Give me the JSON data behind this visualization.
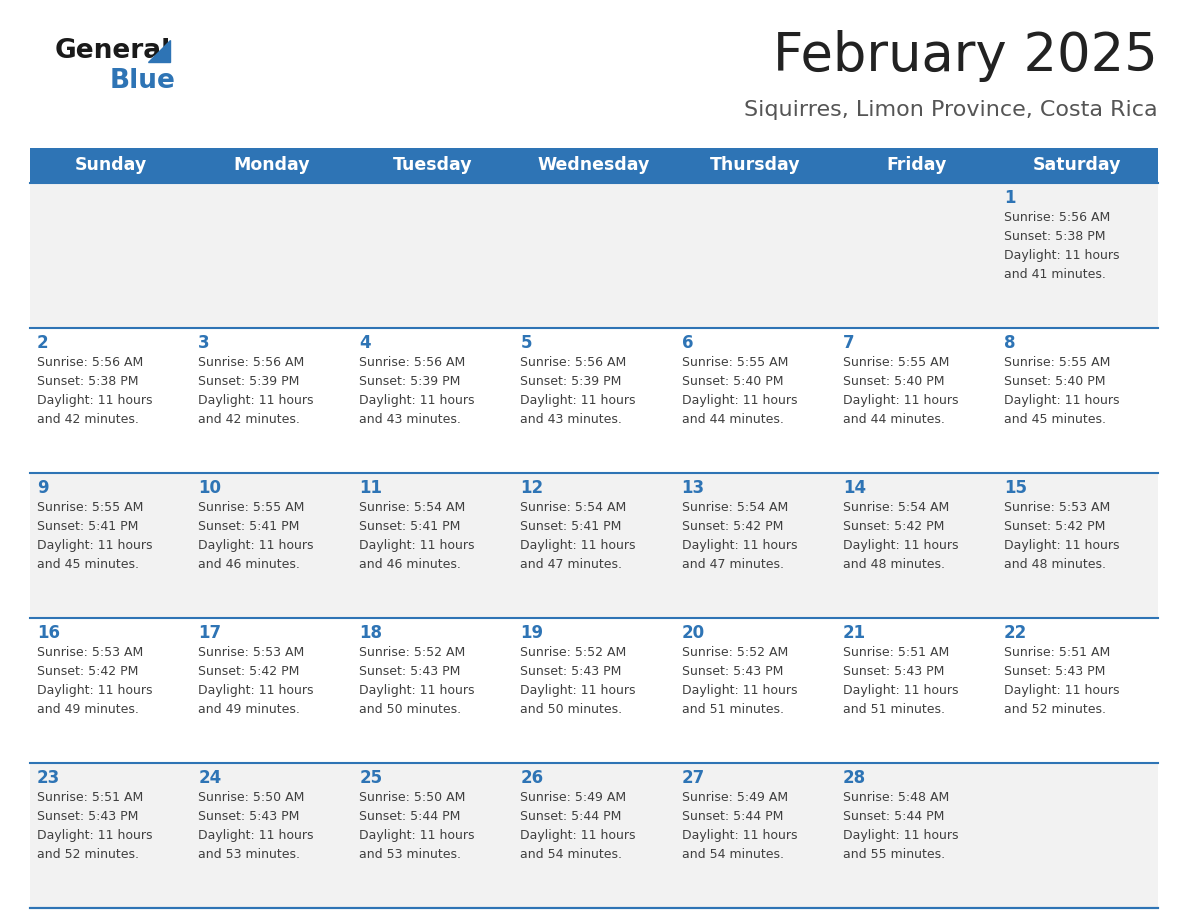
{
  "title": "February 2025",
  "subtitle": "Siquirres, Limon Province, Costa Rica",
  "header_color": "#2E74B5",
  "header_text_color": "#FFFFFF",
  "cell_bg_light": "#F2F2F2",
  "cell_bg_white": "#FFFFFF",
  "text_color": "#404040",
  "day_number_color": "#2E74B5",
  "separator_color": "#2E74B5",
  "days_of_week": [
    "Sunday",
    "Monday",
    "Tuesday",
    "Wednesday",
    "Thursday",
    "Friday",
    "Saturday"
  ],
  "weeks": [
    [
      {
        "day": null,
        "sunrise": null,
        "sunset": null,
        "daylight_h": null,
        "daylight_m": null
      },
      {
        "day": null,
        "sunrise": null,
        "sunset": null,
        "daylight_h": null,
        "daylight_m": null
      },
      {
        "day": null,
        "sunrise": null,
        "sunset": null,
        "daylight_h": null,
        "daylight_m": null
      },
      {
        "day": null,
        "sunrise": null,
        "sunset": null,
        "daylight_h": null,
        "daylight_m": null
      },
      {
        "day": null,
        "sunrise": null,
        "sunset": null,
        "daylight_h": null,
        "daylight_m": null
      },
      {
        "day": null,
        "sunrise": null,
        "sunset": null,
        "daylight_h": null,
        "daylight_m": null
      },
      {
        "day": 1,
        "sunrise": "5:56 AM",
        "sunset": "5:38 PM",
        "daylight_h": "11 hours",
        "daylight_m": "and 41 minutes."
      }
    ],
    [
      {
        "day": 2,
        "sunrise": "5:56 AM",
        "sunset": "5:38 PM",
        "daylight_h": "11 hours",
        "daylight_m": "and 42 minutes."
      },
      {
        "day": 3,
        "sunrise": "5:56 AM",
        "sunset": "5:39 PM",
        "daylight_h": "11 hours",
        "daylight_m": "and 42 minutes."
      },
      {
        "day": 4,
        "sunrise": "5:56 AM",
        "sunset": "5:39 PM",
        "daylight_h": "11 hours",
        "daylight_m": "and 43 minutes."
      },
      {
        "day": 5,
        "sunrise": "5:56 AM",
        "sunset": "5:39 PM",
        "daylight_h": "11 hours",
        "daylight_m": "and 43 minutes."
      },
      {
        "day": 6,
        "sunrise": "5:55 AM",
        "sunset": "5:40 PM",
        "daylight_h": "11 hours",
        "daylight_m": "and 44 minutes."
      },
      {
        "day": 7,
        "sunrise": "5:55 AM",
        "sunset": "5:40 PM",
        "daylight_h": "11 hours",
        "daylight_m": "and 44 minutes."
      },
      {
        "day": 8,
        "sunrise": "5:55 AM",
        "sunset": "5:40 PM",
        "daylight_h": "11 hours",
        "daylight_m": "and 45 minutes."
      }
    ],
    [
      {
        "day": 9,
        "sunrise": "5:55 AM",
        "sunset": "5:41 PM",
        "daylight_h": "11 hours",
        "daylight_m": "and 45 minutes."
      },
      {
        "day": 10,
        "sunrise": "5:55 AM",
        "sunset": "5:41 PM",
        "daylight_h": "11 hours",
        "daylight_m": "and 46 minutes."
      },
      {
        "day": 11,
        "sunrise": "5:54 AM",
        "sunset": "5:41 PM",
        "daylight_h": "11 hours",
        "daylight_m": "and 46 minutes."
      },
      {
        "day": 12,
        "sunrise": "5:54 AM",
        "sunset": "5:41 PM",
        "daylight_h": "11 hours",
        "daylight_m": "and 47 minutes."
      },
      {
        "day": 13,
        "sunrise": "5:54 AM",
        "sunset": "5:42 PM",
        "daylight_h": "11 hours",
        "daylight_m": "and 47 minutes."
      },
      {
        "day": 14,
        "sunrise": "5:54 AM",
        "sunset": "5:42 PM",
        "daylight_h": "11 hours",
        "daylight_m": "and 48 minutes."
      },
      {
        "day": 15,
        "sunrise": "5:53 AM",
        "sunset": "5:42 PM",
        "daylight_h": "11 hours",
        "daylight_m": "and 48 minutes."
      }
    ],
    [
      {
        "day": 16,
        "sunrise": "5:53 AM",
        "sunset": "5:42 PM",
        "daylight_h": "11 hours",
        "daylight_m": "and 49 minutes."
      },
      {
        "day": 17,
        "sunrise": "5:53 AM",
        "sunset": "5:42 PM",
        "daylight_h": "11 hours",
        "daylight_m": "and 49 minutes."
      },
      {
        "day": 18,
        "sunrise": "5:52 AM",
        "sunset": "5:43 PM",
        "daylight_h": "11 hours",
        "daylight_m": "and 50 minutes."
      },
      {
        "day": 19,
        "sunrise": "5:52 AM",
        "sunset": "5:43 PM",
        "daylight_h": "11 hours",
        "daylight_m": "and 50 minutes."
      },
      {
        "day": 20,
        "sunrise": "5:52 AM",
        "sunset": "5:43 PM",
        "daylight_h": "11 hours",
        "daylight_m": "and 51 minutes."
      },
      {
        "day": 21,
        "sunrise": "5:51 AM",
        "sunset": "5:43 PM",
        "daylight_h": "11 hours",
        "daylight_m": "and 51 minutes."
      },
      {
        "day": 22,
        "sunrise": "5:51 AM",
        "sunset": "5:43 PM",
        "daylight_h": "11 hours",
        "daylight_m": "and 52 minutes."
      }
    ],
    [
      {
        "day": 23,
        "sunrise": "5:51 AM",
        "sunset": "5:43 PM",
        "daylight_h": "11 hours",
        "daylight_m": "and 52 minutes."
      },
      {
        "day": 24,
        "sunrise": "5:50 AM",
        "sunset": "5:43 PM",
        "daylight_h": "11 hours",
        "daylight_m": "and 53 minutes."
      },
      {
        "day": 25,
        "sunrise": "5:50 AM",
        "sunset": "5:44 PM",
        "daylight_h": "11 hours",
        "daylight_m": "and 53 minutes."
      },
      {
        "day": 26,
        "sunrise": "5:49 AM",
        "sunset": "5:44 PM",
        "daylight_h": "11 hours",
        "daylight_m": "and 54 minutes."
      },
      {
        "day": 27,
        "sunrise": "5:49 AM",
        "sunset": "5:44 PM",
        "daylight_h": "11 hours",
        "daylight_m": "and 54 minutes."
      },
      {
        "day": 28,
        "sunrise": "5:48 AM",
        "sunset": "5:44 PM",
        "daylight_h": "11 hours",
        "daylight_m": "and 55 minutes."
      },
      {
        "day": null,
        "sunrise": null,
        "sunset": null,
        "daylight_h": null,
        "daylight_m": null
      }
    ]
  ],
  "logo_general_color": "#1a1a1a",
  "logo_blue_color": "#2E74B5",
  "logo_triangle_color": "#2E74B5",
  "title_color": "#222222",
  "subtitle_color": "#555555"
}
